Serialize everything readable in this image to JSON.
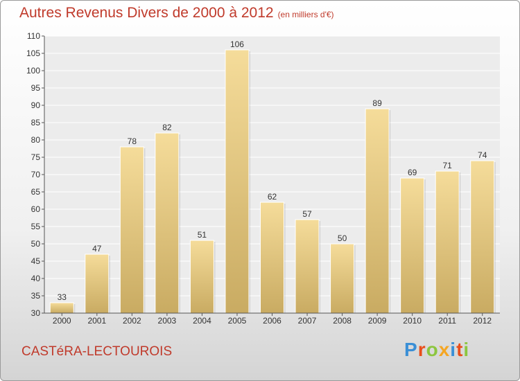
{
  "header": {
    "title": "Autres Revenus Divers de 2000 à 2012",
    "subtitle": "(en milliers d'€)"
  },
  "footer": {
    "city": "CASTéRA-LECTOUROIS",
    "logo_letters": [
      "P",
      "r",
      "o",
      "x",
      "i",
      "t",
      "i"
    ],
    "logo_colors": [
      "#3a8fd6",
      "#e94e1b",
      "#8cc63f",
      "#f5a623",
      "#3a8fd6",
      "#e94e1b",
      "#8cc63f"
    ]
  },
  "chart_data": {
    "type": "bar",
    "categories": [
      "2000",
      "2001",
      "2002",
      "2003",
      "2004",
      "2005",
      "2006",
      "2007",
      "2008",
      "2009",
      "2010",
      "2011",
      "2012"
    ],
    "values": [
      33,
      47,
      78,
      82,
      51,
      106,
      62,
      57,
      50,
      89,
      69,
      71,
      74
    ],
    "ylim": [
      30,
      110
    ],
    "yticks": [
      30,
      35,
      40,
      45,
      50,
      55,
      60,
      65,
      70,
      75,
      80,
      85,
      90,
      95,
      100,
      105,
      110
    ],
    "grid": true,
    "bar_color_top": "#f5dc9a",
    "bar_color_bottom": "#c9ab62"
  }
}
